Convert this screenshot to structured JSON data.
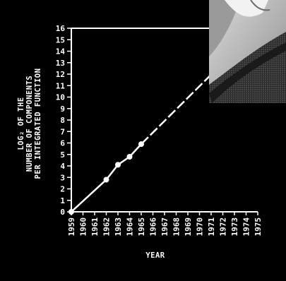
{
  "chart_data": {
    "type": "line",
    "title": "",
    "xlabel": "YEAR",
    "ylabel_lines": [
      "LOG₂ OF THE",
      "NUMBER OF COMPONENTS",
      "PER INTEGRATED FUNCTION"
    ],
    "x_ticks": [
      "1959",
      "1960",
      "1961",
      "1962",
      "1963",
      "1964",
      "1965",
      "1966",
      "1967",
      "1968",
      "1969",
      "1970",
      "1971",
      "1972",
      "1973",
      "1974",
      "1975"
    ],
    "y_ticks": [
      0,
      1,
      2,
      3,
      4,
      5,
      6,
      7,
      8,
      9,
      10,
      11,
      12,
      13,
      14,
      15,
      16
    ],
    "xlim": [
      1959,
      1975
    ],
    "ylim": [
      0,
      16
    ],
    "grid": false,
    "series": [
      {
        "style": "solid-with-markers",
        "x": [
          1959,
          1962,
          1963,
          1964,
          1965
        ],
        "y": [
          0,
          2.8,
          4.1,
          4.8,
          5.9
        ]
      },
      {
        "style": "dashed-extrapolation",
        "x": [
          1965,
          1975
        ],
        "y": [
          5.9,
          16
        ]
      }
    ],
    "colors": {
      "background": "#000000",
      "foreground": "#ffffff"
    }
  },
  "inset_image": {
    "icon": "photo-inset"
  }
}
